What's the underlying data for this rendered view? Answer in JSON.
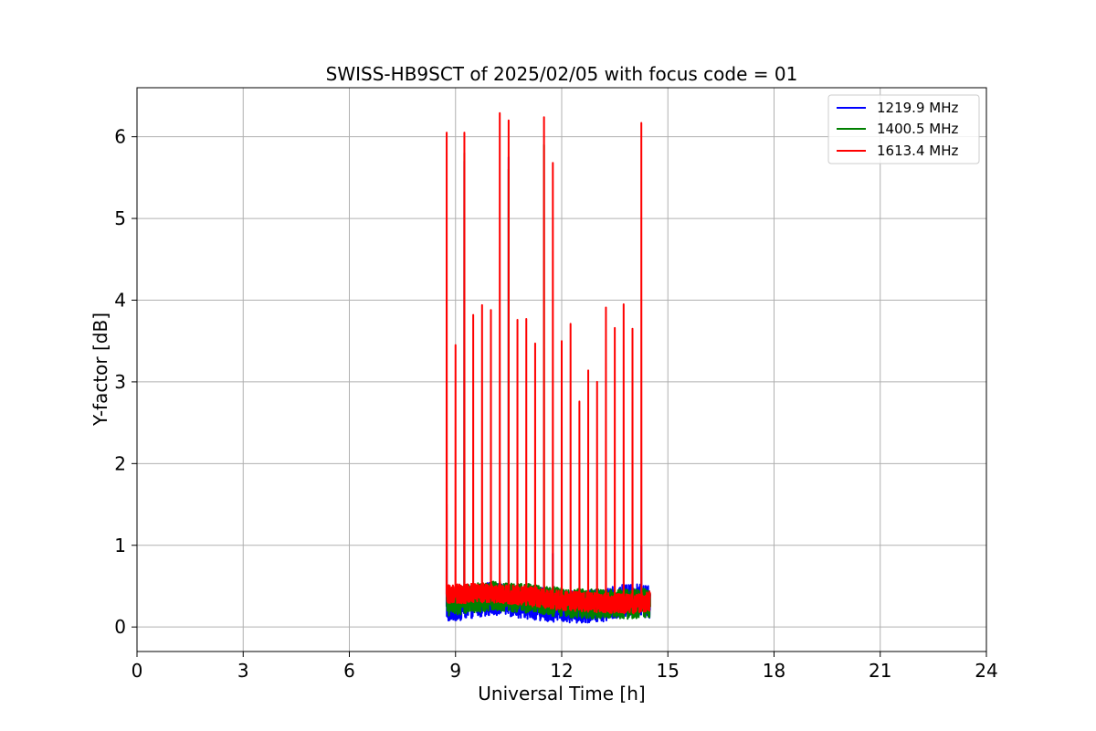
{
  "chart_data": {
    "type": "line",
    "title": "SWISS-HB9SCT of 2025/02/05 with focus code = 01",
    "xlabel": "Universal Time [h]",
    "ylabel": "Y-factor [dB]",
    "xlim": [
      0,
      24
    ],
    "ylim": [
      -0.3,
      6.6
    ],
    "xticks": [
      0,
      3,
      6,
      9,
      12,
      15,
      18,
      21,
      24
    ],
    "yticks": [
      0,
      1,
      2,
      3,
      4,
      5,
      6
    ],
    "grid": true,
    "legend_position": "top-right",
    "time_range": [
      8.75,
      14.5
    ],
    "series": [
      {
        "name": "1219.9 MHz",
        "color": "#0000ff",
        "baseline": [
          [
            8.75,
            0.25
          ],
          [
            10.0,
            0.35
          ],
          [
            11.0,
            0.3
          ],
          [
            12.0,
            0.25
          ],
          [
            13.0,
            0.25
          ],
          [
            14.0,
            0.35
          ],
          [
            14.5,
            0.3
          ]
        ],
        "noise_amplitude": 0.2,
        "peaks": [
          [
            8.75,
            1.5
          ],
          [
            9.25,
            5.7
          ],
          [
            10.5,
            5.75
          ],
          [
            11.75,
            0.9
          ],
          [
            14.0,
            0.85
          ],
          [
            14.25,
            1.0
          ]
        ]
      },
      {
        "name": "1400.5 MHz",
        "color": "#008000",
        "baseline": [
          [
            8.75,
            0.3
          ],
          [
            10.0,
            0.38
          ],
          [
            11.0,
            0.35
          ],
          [
            12.0,
            0.3
          ],
          [
            13.0,
            0.28
          ],
          [
            14.0,
            0.28
          ],
          [
            14.5,
            0.3
          ]
        ],
        "noise_amplitude": 0.18,
        "peaks": [
          [
            9.25,
            5.8
          ],
          [
            10.5,
            5.6
          ],
          [
            11.5,
            5.9
          ]
        ]
      },
      {
        "name": "1613.4 MHz",
        "color": "#ff0000",
        "baseline": [
          [
            8.75,
            0.4
          ],
          [
            10.0,
            0.42
          ],
          [
            11.0,
            0.38
          ],
          [
            12.0,
            0.32
          ],
          [
            13.0,
            0.3
          ],
          [
            14.0,
            0.28
          ],
          [
            14.5,
            0.32
          ]
        ],
        "noise_amplitude": 0.12,
        "peaks": [
          [
            8.75,
            6.05
          ],
          [
            9.0,
            3.45
          ],
          [
            9.25,
            6.05
          ],
          [
            9.5,
            3.82
          ],
          [
            9.75,
            3.94
          ],
          [
            10.0,
            3.88
          ],
          [
            10.25,
            6.29
          ],
          [
            10.5,
            6.2
          ],
          [
            10.75,
            3.76
          ],
          [
            11.0,
            3.77
          ],
          [
            11.25,
            3.47
          ],
          [
            11.5,
            6.24
          ],
          [
            11.75,
            5.68
          ],
          [
            12.0,
            3.5
          ],
          [
            12.25,
            3.71
          ],
          [
            12.5,
            2.76
          ],
          [
            12.75,
            3.14
          ],
          [
            13.0,
            3.0
          ],
          [
            13.25,
            3.91
          ],
          [
            13.5,
            3.66
          ],
          [
            13.75,
            3.95
          ],
          [
            14.0,
            3.65
          ],
          [
            14.25,
            6.17
          ]
        ]
      }
    ]
  }
}
